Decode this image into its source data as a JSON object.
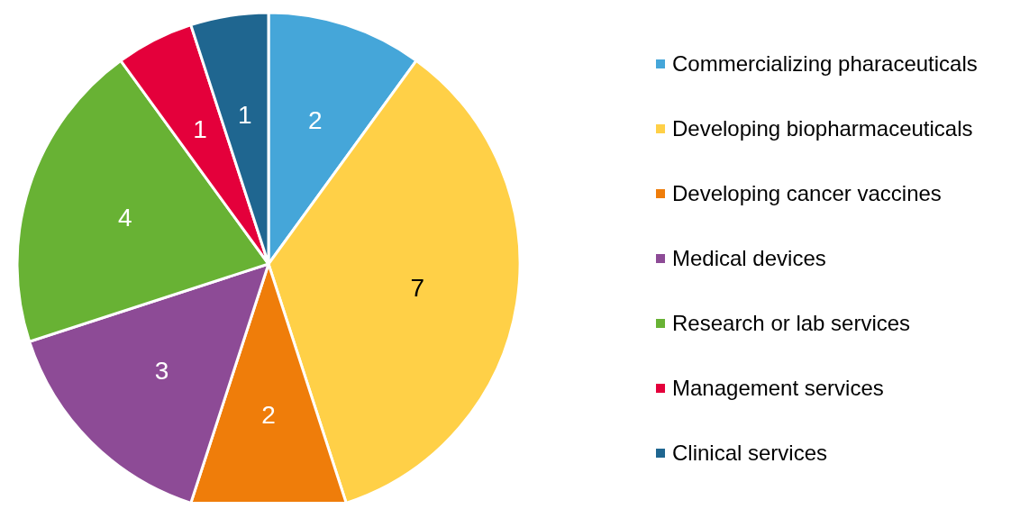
{
  "chart_data": {
    "type": "pie",
    "categories": [
      "Commercializing pharaceuticals",
      "Developing biopharmaceuticals",
      "Developing cancer vaccines",
      "Medical devices",
      "Research or lab services",
      "Management services",
      "Clinical services"
    ],
    "values": [
      2,
      7,
      2,
      3,
      4,
      1,
      1
    ],
    "colors": [
      "#45a6d9",
      "#ffd047",
      "#ef7d0a",
      "#8d4b96",
      "#68b234",
      "#e4003b",
      "#1f6690"
    ],
    "data_labels": true,
    "legend": "right"
  }
}
